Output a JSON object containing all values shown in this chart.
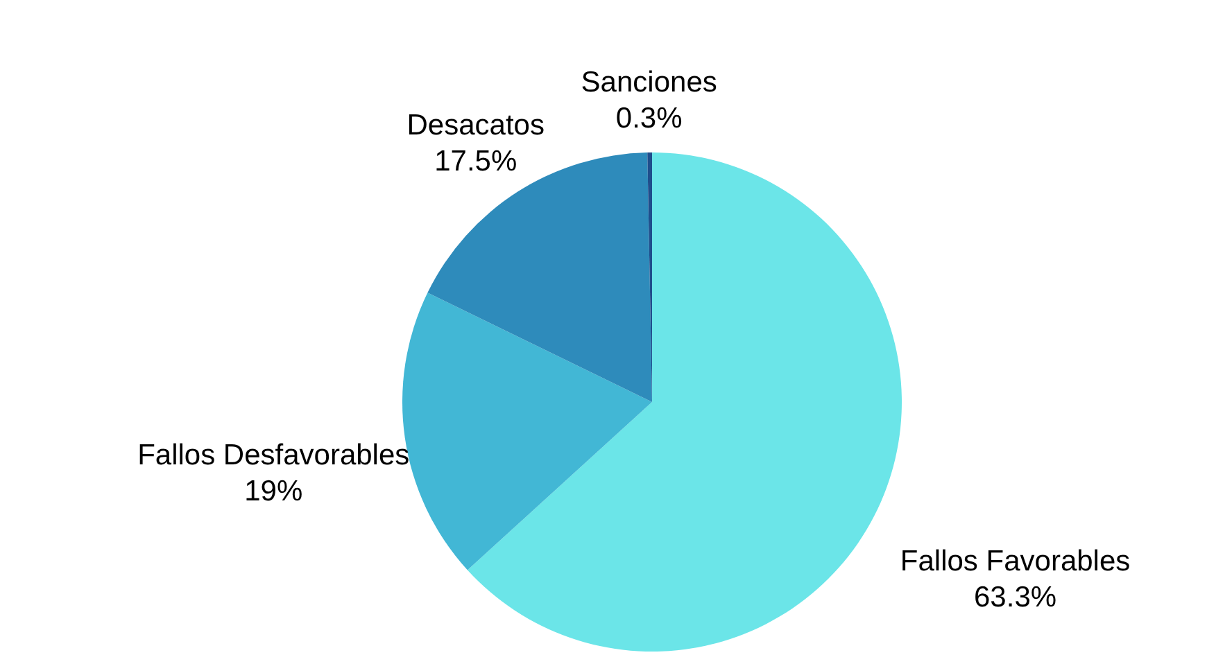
{
  "chart_data": {
    "type": "pie",
    "categories": [
      "Fallos Favorables",
      "Fallos Desfavorables",
      "Desacatos",
      "Sanciones"
    ],
    "values": [
      63.3,
      19,
      17.5,
      0.3
    ],
    "value_labels": [
      "63.3%",
      "19%",
      "17.5%",
      "0.3%"
    ],
    "colors": [
      "#6be5e8",
      "#42b7d5",
      "#2e8bbb",
      "#1f4e8c"
    ],
    "legend": false
  }
}
